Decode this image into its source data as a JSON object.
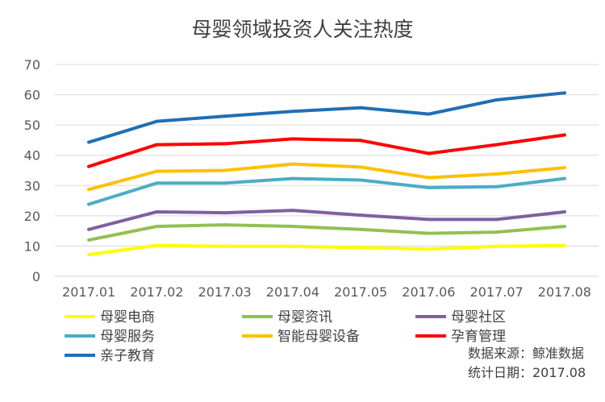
{
  "chart_data": {
    "type": "line",
    "title": "母婴领域投资人关注热度",
    "xlabel": "",
    "ylabel": "",
    "ylim": [
      0,
      70
    ],
    "yticks": [
      0,
      10,
      20,
      30,
      40,
      50,
      60,
      70
    ],
    "grid": true,
    "legend_position": "bottom",
    "categories": [
      "2017.01",
      "2017.02",
      "2017.03",
      "2017.04",
      "2017.05",
      "2017.06",
      "2017.07",
      "2017.08"
    ],
    "series": [
      {
        "name": "母婴电商",
        "color": "#FFFF00",
        "values": [
          7.2,
          10.2,
          9.9,
          9.9,
          9.5,
          9.0,
          9.9,
          10.2
        ]
      },
      {
        "name": "母婴资讯",
        "color": "#92C050",
        "values": [
          12.0,
          16.5,
          17.0,
          16.5,
          15.5,
          14.2,
          14.6,
          16.5
        ]
      },
      {
        "name": "母婴社区",
        "color": "#7F5FA0",
        "values": [
          15.5,
          21.3,
          21.0,
          21.8,
          20.2,
          18.8,
          18.8,
          21.3
        ]
      },
      {
        "name": "母婴服务",
        "color": "#4BACC6",
        "values": [
          23.8,
          30.8,
          30.8,
          32.3,
          31.8,
          29.3,
          29.6,
          32.3
        ]
      },
      {
        "name": "智能母婴设备",
        "color": "#FFC000",
        "values": [
          28.7,
          34.7,
          35.0,
          37.1,
          36.1,
          32.6,
          33.8,
          35.9
        ]
      },
      {
        "name": "孕育管理",
        "color": "#FF0000",
        "values": [
          36.3,
          43.5,
          43.8,
          45.4,
          44.9,
          40.6,
          43.5,
          46.7
        ]
      },
      {
        "name": "亲子教育",
        "color": "#1F6FB4",
        "values": [
          44.3,
          51.2,
          52.9,
          54.5,
          55.7,
          53.6,
          58.3,
          60.6
        ]
      }
    ],
    "source_note": "数据来源：鲸准数据",
    "date_note": "统计日期：2017.08"
  }
}
